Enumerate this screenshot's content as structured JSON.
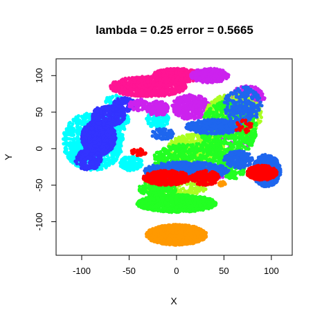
{
  "chart_data": {
    "type": "scatter",
    "title": "lambda = 0.25 error = 0.5665",
    "xlabel": "X",
    "ylabel": "Y",
    "xlim": [
      -127,
      122
    ],
    "ylim": [
      -146,
      123
    ],
    "x_ticks": [
      -100,
      -50,
      0,
      50,
      100
    ],
    "y_ticks": [
      -100,
      -50,
      0,
      50,
      100
    ],
    "grid": false,
    "legend": "none",
    "series": [
      {
        "color": "#00FFFF",
        "clusters": [
          {
            "cx": -88,
            "cy": 10,
            "rx": 32,
            "ry": 40,
            "n": 950
          },
          {
            "cx": -62,
            "cy": 38,
            "rx": 12,
            "ry": 14,
            "n": 130
          },
          {
            "cx": -48,
            "cy": -20,
            "rx": 12,
            "ry": 10,
            "n": 140
          },
          {
            "cx": -65,
            "cy": 65,
            "rx": 10,
            "ry": 8,
            "n": 60
          },
          {
            "cx": -20,
            "cy": 40,
            "rx": 12,
            "ry": 12,
            "n": 110
          }
        ]
      },
      {
        "color": "#3333FF",
        "clusters": [
          {
            "cx": -82,
            "cy": 15,
            "rx": 18,
            "ry": 24,
            "n": 1200
          },
          {
            "cx": -72,
            "cy": 45,
            "rx": 18,
            "ry": 14,
            "n": 260
          },
          {
            "cx": -93,
            "cy": -15,
            "rx": 14,
            "ry": 14,
            "n": 180
          },
          {
            "cx": -55,
            "cy": 60,
            "rx": 12,
            "ry": 10,
            "n": 100
          }
        ]
      },
      {
        "color": "#FF1493",
        "clusters": [
          {
            "cx": -30,
            "cy": 85,
            "rx": 40,
            "ry": 14,
            "n": 700
          },
          {
            "cx": 0,
            "cy": 100,
            "rx": 25,
            "ry": 10,
            "n": 420
          }
        ]
      },
      {
        "color": "#CC22EE",
        "clusters": [
          {
            "cx": 35,
            "cy": 100,
            "rx": 20,
            "ry": 10,
            "n": 300
          },
          {
            "cx": 15,
            "cy": 57,
            "rx": 20,
            "ry": 17,
            "n": 320
          },
          {
            "cx": -20,
            "cy": 55,
            "rx": 12,
            "ry": 10,
            "n": 150
          },
          {
            "cx": 75,
            "cy": 70,
            "rx": 18,
            "ry": 16,
            "n": 240
          },
          {
            "cx": -40,
            "cy": 60,
            "rx": 10,
            "ry": 8,
            "n": 70
          },
          {
            "cx": 10,
            "cy": -35,
            "rx": 45,
            "ry": 12,
            "n": 130
          },
          {
            "cx": 60,
            "cy": 20,
            "rx": 25,
            "ry": 25,
            "n": 90
          }
        ]
      },
      {
        "color": "#AAFF22",
        "clusters": [
          {
            "cx": 60,
            "cy": 45,
            "rx": 30,
            "ry": 30,
            "n": 520
          },
          {
            "cx": 20,
            "cy": 0,
            "rx": 30,
            "ry": 20,
            "n": 420
          },
          {
            "cx": 0,
            "cy": -50,
            "rx": 35,
            "ry": 15,
            "n": 220
          }
        ]
      },
      {
        "color": "#22FF22",
        "clusters": [
          {
            "cx": 0,
            "cy": -75,
            "rx": 42,
            "ry": 12,
            "n": 900
          },
          {
            "cx": 55,
            "cy": 25,
            "rx": 30,
            "ry": 40,
            "n": 700
          },
          {
            "cx": 15,
            "cy": -15,
            "rx": 40,
            "ry": 22,
            "n": 500
          },
          {
            "cx": -20,
            "cy": -55,
            "rx": 20,
            "ry": 10,
            "n": 160
          },
          {
            "cx": 60,
            "cy": -30,
            "rx": 12,
            "ry": 12,
            "n": 120
          }
        ]
      },
      {
        "color": "#1E66EE",
        "clusters": [
          {
            "cx": 40,
            "cy": 30,
            "rx": 30,
            "ry": 10,
            "n": 380
          },
          {
            "cx": 10,
            "cy": -30,
            "rx": 45,
            "ry": 12,
            "n": 560
          },
          {
            "cx": 65,
            "cy": -15,
            "rx": 15,
            "ry": 12,
            "n": 180
          },
          {
            "cx": 95,
            "cy": -30,
            "rx": 15,
            "ry": 22,
            "n": 400
          },
          {
            "cx": 70,
            "cy": 60,
            "rx": 20,
            "ry": 25,
            "n": 220
          },
          {
            "cx": -15,
            "cy": 20,
            "rx": 12,
            "ry": 8,
            "n": 70
          }
        ]
      },
      {
        "color": "#FF0000",
        "clusters": [
          {
            "cx": 90,
            "cy": -33,
            "rx": 16,
            "ry": 10,
            "n": 430
          },
          {
            "cx": -10,
            "cy": -40,
            "rx": 25,
            "ry": 10,
            "n": 360
          },
          {
            "cx": 30,
            "cy": -40,
            "rx": 15,
            "ry": 10,
            "n": 140
          },
          {
            "cx": -40,
            "cy": -5,
            "rx": 8,
            "ry": 5,
            "n": 30
          },
          {
            "cx": 70,
            "cy": 30,
            "rx": 10,
            "ry": 10,
            "n": 25
          }
        ]
      },
      {
        "color": "#FF9900",
        "clusters": [
          {
            "cx": 0,
            "cy": -118,
            "rx": 32,
            "ry": 14,
            "n": 1300
          },
          {
            "cx": 48,
            "cy": -48,
            "rx": 4,
            "ry": 3,
            "n": 25
          }
        ]
      }
    ]
  }
}
